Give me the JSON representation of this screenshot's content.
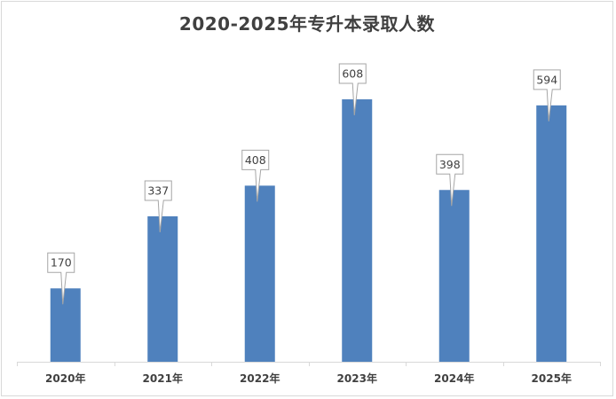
{
  "chart_data": {
    "type": "bar",
    "title": "2020-2025年专升本录取人数",
    "categories": [
      "2020年",
      "2021年",
      "2022年",
      "2023年",
      "2024年",
      "2025年"
    ],
    "values": [
      170,
      337,
      408,
      608,
      398,
      594
    ],
    "xlabel": "",
    "ylabel": "",
    "ylim": [
      0,
      700
    ],
    "grid": false,
    "legend": "none",
    "data_labels": true,
    "bar_color": "#4f81bd"
  }
}
